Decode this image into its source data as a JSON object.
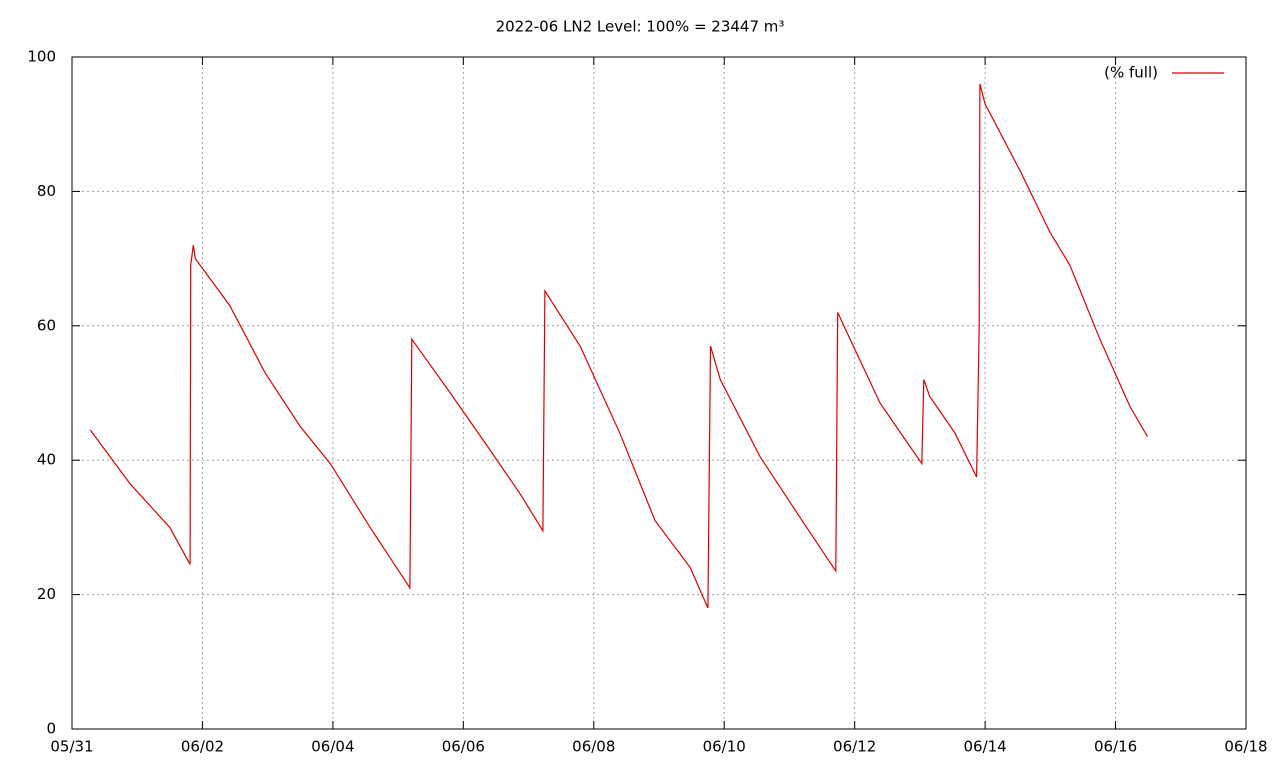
{
  "chart_data": {
    "type": "line",
    "title": "2022-06 LN2 Level: 100% = 23447 m³",
    "x": [
      0.28,
      0.89,
      1.5,
      1.81,
      1.82,
      1.86,
      1.89,
      2.42,
      2.96,
      3.5,
      3.96,
      4.57,
      5.18,
      5.21,
      5.8,
      6.41,
      6.87,
      7.22,
      7.25,
      7.79,
      8.4,
      8.94,
      9.48,
      9.75,
      9.79,
      9.94,
      10.55,
      11.16,
      11.71,
      11.74,
      11.93,
      12.39,
      13.03,
      13.06,
      13.15,
      13.54,
      13.87,
      13.91,
      13.92,
      14.0,
      14.54,
      14.99,
      15.3,
      15.76,
      16.22,
      16.49
    ],
    "series": [
      {
        "name": "(% full)",
        "color": "#dd0000",
        "values": [
          44.5,
          36.5,
          30,
          24.5,
          69,
          72,
          70,
          63,
          53,
          45,
          39.5,
          30,
          21,
          58,
          50,
          41.5,
          35,
          29.5,
          65.2,
          57,
          44,
          31,
          24,
          18,
          57,
          52,
          40.5,
          31.5,
          23.5,
          62,
          58,
          48.5,
          39.5,
          52,
          49.5,
          44,
          37.5,
          60,
          96,
          93,
          83,
          74,
          69,
          58,
          48,
          43.5
        ]
      }
    ],
    "xlim": [
      0,
      18
    ],
    "xticks": [
      {
        "value": 0,
        "label": "05/31"
      },
      {
        "value": 2,
        "label": "06/02"
      },
      {
        "value": 4,
        "label": "06/04"
      },
      {
        "value": 6,
        "label": "06/06"
      },
      {
        "value": 8,
        "label": "06/08"
      },
      {
        "value": 10,
        "label": "06/10"
      },
      {
        "value": 12,
        "label": "06/12"
      },
      {
        "value": 14,
        "label": "06/14"
      },
      {
        "value": 16,
        "label": "06/16"
      },
      {
        "value": 18,
        "label": "06/18"
      }
    ],
    "ylim": [
      0,
      100
    ],
    "yticks": [
      0,
      20,
      40,
      60,
      80,
      100
    ],
    "grid": true,
    "legend": "top-right"
  }
}
